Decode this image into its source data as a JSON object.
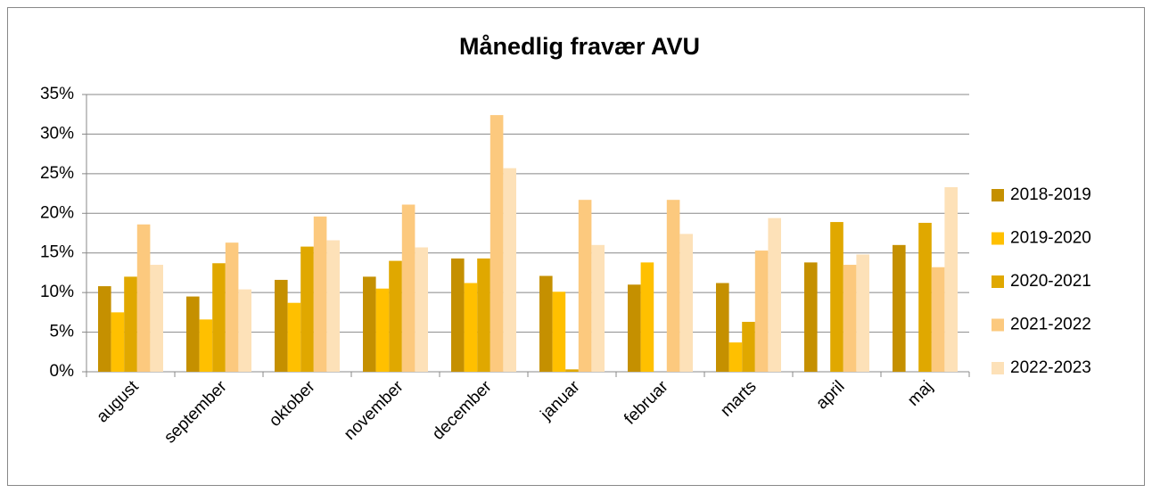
{
  "chart_data": {
    "type": "bar",
    "title": "Månedlig fravær AVU",
    "categories": [
      "august",
      "september",
      "oktober",
      "november",
      "december",
      "januar",
      "februar",
      "marts",
      "april",
      "maj"
    ],
    "series": [
      {
        "name": "2018-2019",
        "color": "#c59000",
        "values": [
          10.8,
          9.5,
          11.6,
          12.0,
          14.3,
          12.1,
          11.0,
          11.2,
          13.8,
          16.0
        ]
      },
      {
        "name": "2019-2020",
        "color": "#ffc000",
        "values": [
          7.5,
          6.6,
          8.7,
          10.5,
          11.2,
          10.1,
          13.8,
          3.7,
          null,
          null
        ]
      },
      {
        "name": "2020-2021",
        "color": "#e0a800",
        "values": [
          12.0,
          13.7,
          15.8,
          14.0,
          14.3,
          0.3,
          null,
          6.3,
          18.9,
          18.8
        ]
      },
      {
        "name": "2021-2022",
        "color": "#fcc97e",
        "values": [
          18.6,
          16.3,
          19.6,
          21.1,
          32.4,
          21.7,
          21.7,
          15.3,
          13.5,
          13.2
        ]
      },
      {
        "name": "2022-2023",
        "color": "#fde1b8",
        "values": [
          13.5,
          10.4,
          16.6,
          15.7,
          25.7,
          16.0,
          17.4,
          19.4,
          14.8,
          23.3
        ]
      }
    ],
    "ylim": [
      0,
      35
    ],
    "yticks": [
      {
        "value": 0,
        "label": "0%"
      },
      {
        "value": 5,
        "label": "5%"
      },
      {
        "value": 10,
        "label": "10%"
      },
      {
        "value": 15,
        "label": "15%"
      },
      {
        "value": 20,
        "label": "20%"
      },
      {
        "value": 25,
        "label": "25%"
      },
      {
        "value": 30,
        "label": "30%"
      },
      {
        "value": 35,
        "label": "35%"
      }
    ],
    "grid": true,
    "legend": "right"
  }
}
